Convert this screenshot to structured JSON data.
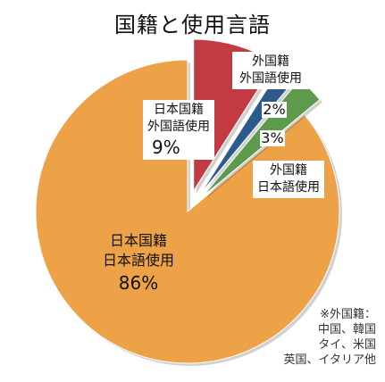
{
  "chart_data": {
    "type": "pie",
    "title": "国籍と使用言語",
    "slices": [
      {
        "label_lines": [
          "日本国籍",
          "日本語使用"
        ],
        "value": 86,
        "pct_label": "86%",
        "color": "#EDA247",
        "exploded": false
      },
      {
        "label_lines": [
          "日本国籍",
          "外国語使用"
        ],
        "value": 9,
        "pct_label": "9%",
        "color": "#C23B42",
        "exploded": true
      },
      {
        "label_lines": [
          "外国籍",
          "外国語使用"
        ],
        "value": 2,
        "pct_label": "2%",
        "color": "#2C5A8C",
        "exploded": true
      },
      {
        "label_lines": [
          "外国籍",
          "日本語使用"
        ],
        "value": 3,
        "pct_label": "3%",
        "color": "#5E9A4B",
        "exploded": true
      }
    ],
    "footnote_lines": [
      "※外国籍：",
      "中国、韓国",
      "タイ、米国",
      "英国、イタリア他"
    ]
  }
}
